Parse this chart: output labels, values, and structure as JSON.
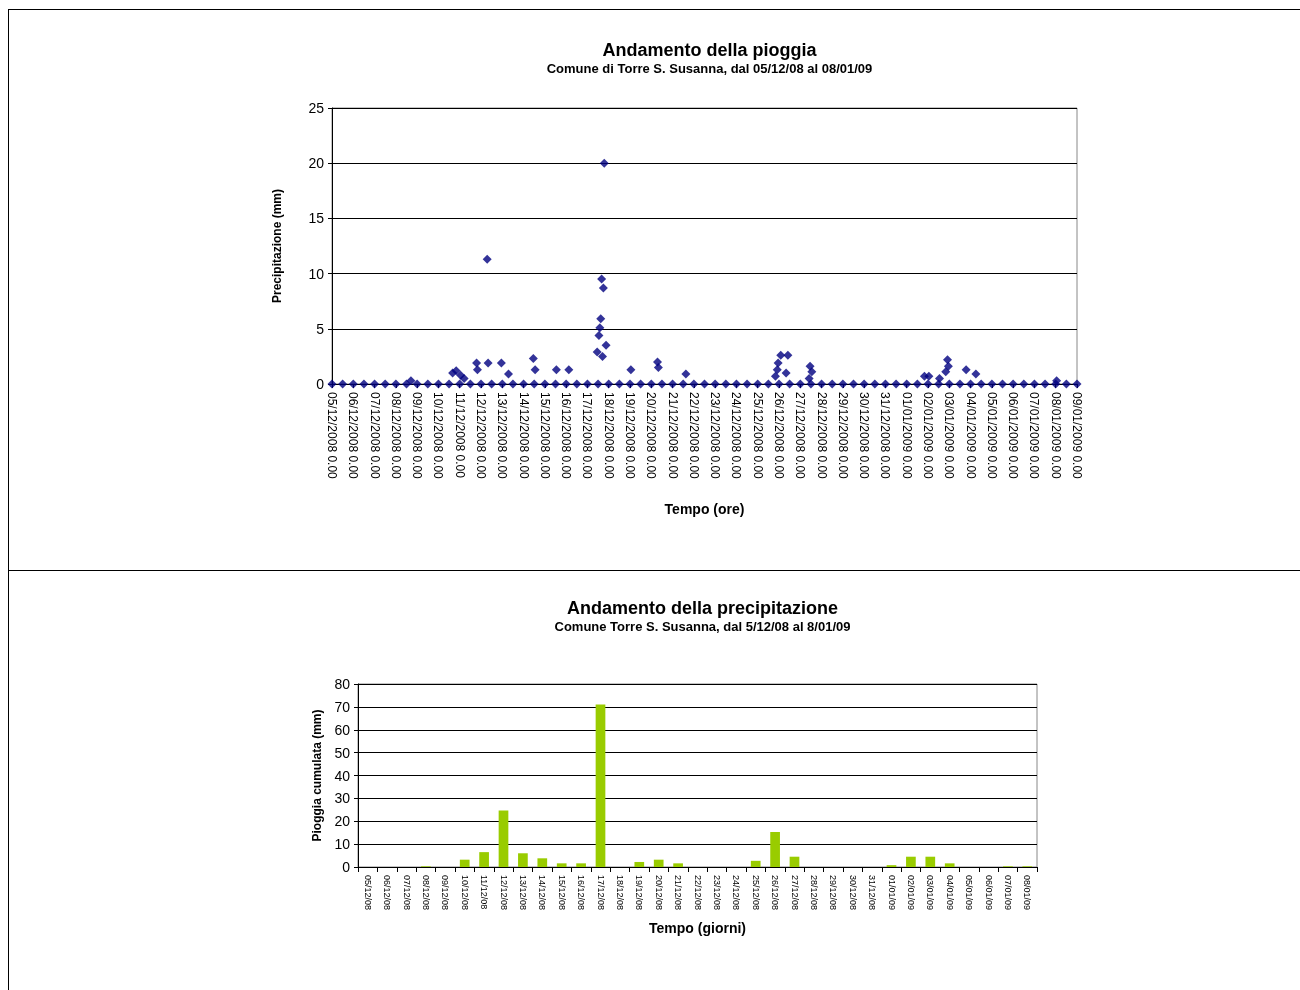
{
  "chart_data": [
    {
      "type": "scatter",
      "title": "Andamento della pioggia",
      "subtitle": "Comune di Torre S. Susanna, dal 05/12/08 al 08/01/09",
      "xlabel": "Tempo (ore)",
      "ylabel": "Precipitazione (mm)",
      "series": [
        {
          "color": "#000080",
          "x": [
            "2008-12-05T00:00",
            "2008-12-05T12:00",
            "2008-12-06T00:00",
            "2008-12-06T12:00",
            "2008-12-07T00:00",
            "2008-12-07T12:00",
            "2008-12-08T00:00",
            "2008-12-08T12:00",
            "2008-12-09T00:00",
            "2008-12-09T12:00",
            "2008-12-10T00:00",
            "2008-12-10T12:00",
            "2008-12-11T00:00",
            "2008-12-11T12:00",
            "2008-12-12T00:00",
            "2008-12-12T12:00",
            "2008-12-13T00:00",
            "2008-12-13T12:00",
            "2008-12-14T00:00",
            "2008-12-14T12:00",
            "2008-12-15T00:00",
            "2008-12-15T12:00",
            "2008-12-16T00:00",
            "2008-12-16T12:00",
            "2008-12-17T00:00",
            "2008-12-17T12:00",
            "2008-12-18T00:00",
            "2008-12-18T12:00",
            "2008-12-19T00:00",
            "2008-12-19T12:00",
            "2008-12-20T00:00",
            "2008-12-20T12:00",
            "2008-12-21T00:00",
            "2008-12-21T12:00",
            "2008-12-22T00:00",
            "2008-12-22T12:00",
            "2008-12-23T00:00",
            "2008-12-23T12:00",
            "2008-12-24T00:00",
            "2008-12-24T12:00",
            "2008-12-25T00:00",
            "2008-12-25T12:00",
            "2008-12-26T00:00",
            "2008-12-26T12:00",
            "2008-12-27T00:00",
            "2008-12-27T12:00",
            "2008-12-28T00:00",
            "2008-12-28T12:00",
            "2008-12-29T00:00",
            "2008-12-29T12:00",
            "2008-12-30T00:00",
            "2008-12-30T12:00",
            "2008-12-31T00:00",
            "2008-12-31T12:00",
            "2009-01-01T00:00",
            "2009-01-01T12:00",
            "2009-01-02T00:00",
            "2009-01-02T12:00",
            "2009-01-03T00:00",
            "2009-01-03T12:00",
            "2009-01-04T00:00",
            "2009-01-04T12:00",
            "2009-01-05T00:00",
            "2009-01-05T12:00",
            "2009-01-06T00:00",
            "2009-01-06T12:00",
            "2009-01-07T00:00",
            "2009-01-07T12:00",
            "2009-01-08T00:00",
            "2009-01-08T12:00",
            "2009-01-09T00:00",
            "2008-12-08T17:00",
            "2008-12-10T16:00",
            "2008-12-10T20:00",
            "2008-12-11T01:00",
            "2008-12-11T05:00",
            "2008-12-11T19:00",
            "2008-12-11T20:00",
            "2008-12-12T07:00",
            "2008-12-12T08:00",
            "2008-12-12T23:00",
            "2008-12-13T07:00",
            "2008-12-14T11:00",
            "2008-12-14T13:00",
            "2008-12-15T13:00",
            "2008-12-16T03:00",
            "2008-12-17T11:00",
            "2008-12-17T13:00",
            "2008-12-17T14:00",
            "2008-12-17T15:00",
            "2008-12-17T16:00",
            "2008-12-17T17:00",
            "2008-12-17T18:00",
            "2008-12-17T19:00",
            "2008-12-17T21:00",
            "2008-12-19T01:00",
            "2008-12-20T07:00",
            "2008-12-20T08:00",
            "2008-12-21T15:00",
            "2008-12-25T20:00",
            "2008-12-25T22:00",
            "2008-12-25T23:00",
            "2008-12-26T02:00",
            "2008-12-26T08:00",
            "2008-12-26T10:00",
            "2008-12-27T10:00",
            "2008-12-27T11:00",
            "2008-12-27T13:00",
            "2009-01-01T20:00",
            "2009-01-02T01:00",
            "2009-01-02T13:00",
            "2009-01-02T20:00",
            "2009-01-02T22:00",
            "2009-01-02T23:00",
            "2009-01-03T19:00",
            "2009-01-04T06:00",
            "2009-01-08T01:00"
          ],
          "values": [
            0,
            0,
            0,
            0,
            0,
            0,
            0,
            0,
            0,
            0,
            0,
            0,
            0,
            0,
            0,
            0,
            0,
            0,
            0,
            0,
            0,
            0,
            0,
            0,
            0,
            0,
            0,
            0,
            0,
            0,
            0,
            0,
            0,
            0,
            0,
            0,
            0,
            0,
            0,
            0,
            0,
            0,
            0,
            0,
            0,
            0,
            0,
            0,
            0,
            0,
            0,
            0,
            0,
            0,
            0,
            0,
            0,
            0,
            0,
            0,
            0,
            0,
            0,
            0,
            0,
            0,
            0,
            0,
            0,
            0,
            0,
            0.3,
            1.0,
            1.2,
            0.8,
            0.5,
            1.9,
            1.3,
            11.3,
            1.9,
            1.9,
            0.9,
            2.3,
            1.3,
            1.3,
            1.3,
            2.9,
            4.4,
            5.1,
            5.9,
            9.5,
            2.5,
            8.7,
            20.0,
            3.5,
            1.3,
            2.0,
            1.5,
            0.9,
            0.7,
            1.3,
            1.9,
            2.6,
            1.0,
            2.6,
            0.5,
            1.6,
            1.1,
            0.7,
            0.7,
            0.5,
            1.1,
            2.2,
            1.6,
            1.3,
            0.9,
            0.3
          ]
        }
      ],
      "xlim": [
        "2008-12-05T00:00",
        "2009-01-09T00:00"
      ],
      "xticks": [
        {
          "value": "2008-12-05T00:00",
          "label": "05/12/2008 0.00"
        },
        {
          "value": "2008-12-06T00:00",
          "label": "06/12/2008 0.00"
        },
        {
          "value": "2008-12-07T00:00",
          "label": "07/12/2008 0.00"
        },
        {
          "value": "2008-12-08T00:00",
          "label": "08/12/2008 0.00"
        },
        {
          "value": "2008-12-09T00:00",
          "label": "09/12/2008 0.00"
        },
        {
          "value": "2008-12-10T00:00",
          "label": "10/12/2008 0.00"
        },
        {
          "value": "2008-12-11T00:00",
          "label": "11/12/2008 0.00"
        },
        {
          "value": "2008-12-12T00:00",
          "label": "12/12/2008 0.00"
        },
        {
          "value": "2008-12-13T00:00",
          "label": "13/12/2008 0.00"
        },
        {
          "value": "2008-12-14T00:00",
          "label": "14/12/2008 0.00"
        },
        {
          "value": "2008-12-15T00:00",
          "label": "15/12/2008 0.00"
        },
        {
          "value": "2008-12-16T00:00",
          "label": "16/12/2008 0.00"
        },
        {
          "value": "2008-12-17T00:00",
          "label": "17/12/2008 0.00"
        },
        {
          "value": "2008-12-18T00:00",
          "label": "18/12/2008 0.00"
        },
        {
          "value": "2008-12-19T00:00",
          "label": "19/12/2008 0.00"
        },
        {
          "value": "2008-12-20T00:00",
          "label": "20/12/2008 0.00"
        },
        {
          "value": "2008-12-21T00:00",
          "label": "21/12/2008 0.00"
        },
        {
          "value": "2008-12-22T00:00",
          "label": "22/12/2008 0.00"
        },
        {
          "value": "2008-12-23T00:00",
          "label": "23/12/2008 0.00"
        },
        {
          "value": "2008-12-24T00:00",
          "label": "24/12/2008 0.00"
        },
        {
          "value": "2008-12-25T00:00",
          "label": "25/12/2008 0.00"
        },
        {
          "value": "2008-12-26T00:00",
          "label": "26/12/2008 0.00"
        },
        {
          "value": "2008-12-27T00:00",
          "label": "27/12/2008 0.00"
        },
        {
          "value": "2008-12-28T00:00",
          "label": "28/12/2008 0.00"
        },
        {
          "value": "2008-12-29T00:00",
          "label": "29/12/2008 0.00"
        },
        {
          "value": "2008-12-30T00:00",
          "label": "30/12/2008 0.00"
        },
        {
          "value": "2008-12-31T00:00",
          "label": "31/12/2008 0.00"
        },
        {
          "value": "2009-01-01T00:00",
          "label": "01/01/2009 0.00"
        },
        {
          "value": "2009-01-02T00:00",
          "label": "02/01/2009 0.00"
        },
        {
          "value": "2009-01-03T00:00",
          "label": "03/01/2009 0.00"
        },
        {
          "value": "2009-01-04T00:00",
          "label": "04/01/2009 0.00"
        },
        {
          "value": "2009-01-05T00:00",
          "label": "05/01/2009 0.00"
        },
        {
          "value": "2009-01-06T00:00",
          "label": "06/01/2009 0.00"
        },
        {
          "value": "2009-01-07T00:00",
          "label": "07/01/2009 0.00"
        },
        {
          "value": "2009-01-08T00:00",
          "label": "08/01/2009 0.00"
        },
        {
          "value": "2009-01-09T00:00",
          "label": "09/01/2009 0.00"
        }
      ],
      "ylim": [
        0,
        25
      ],
      "yticks": [
        0,
        5,
        10,
        15,
        20,
        25
      ],
      "grid": "y",
      "marker": "diamond"
    },
    {
      "type": "bar",
      "title": "Andamento della precipitazione",
      "subtitle": "Comune Torre S. Susanna, dal 5/12/08 al 8/01/09",
      "xlabel": "Tempo (giorni)",
      "ylabel": "Pioggia cumulata (mm)",
      "categories": [
        "05/12/08",
        "06/12/08",
        "07/12/08",
        "08/12/08",
        "09/12/08",
        "10/12/08",
        "11/12/08",
        "12/12/08",
        "13/12/08",
        "14/12/08",
        "15/12/08",
        "16/12/08",
        "17/12/08",
        "18/12/08",
        "19/12/08",
        "20/12/08",
        "21/12/08",
        "22/12/08",
        "23/12/08",
        "24/12/08",
        "25/12/08",
        "26/12/08",
        "27/12/08",
        "28/12/08",
        "29/12/08",
        "30/12/08",
        "31/12/08",
        "01/01/09",
        "02/01/09",
        "03/01/09",
        "04/01/09",
        "05/01/09",
        "06/01/09",
        "07/01/09",
        "08/01/09"
      ],
      "values": [
        0,
        0,
        0,
        0.3,
        0,
        3.2,
        6.5,
        24.7,
        6,
        3.8,
        1.6,
        1.6,
        71,
        0,
        2.2,
        3.2,
        1.6,
        0,
        0,
        0,
        2.7,
        15.3,
        4.5,
        0,
        0,
        0,
        0,
        0.8,
        4.5,
        4.5,
        1.6,
        0,
        0,
        0.3,
        0.3
      ],
      "color": "#99cc00",
      "ylim": [
        0,
        80
      ],
      "yticks": [
        0,
        10,
        20,
        30,
        40,
        50,
        60,
        70,
        80
      ],
      "grid": "y"
    }
  ]
}
